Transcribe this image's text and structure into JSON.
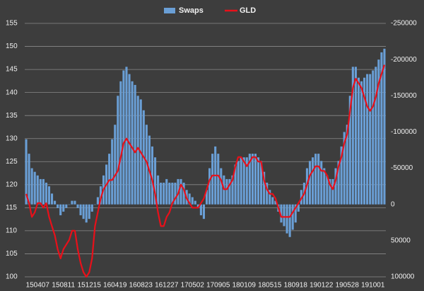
{
  "chart_data": {
    "type": "bar",
    "categories": [
      null,
      null,
      null,
      null,
      "150407",
      null,
      null,
      null,
      null,
      null,
      null,
      null,
      null,
      "150811",
      null,
      null,
      null,
      null,
      null,
      null,
      null,
      null,
      "151215",
      null,
      null,
      null,
      null,
      null,
      null,
      null,
      null,
      "160419",
      null,
      null,
      null,
      null,
      null,
      null,
      null,
      null,
      "160823",
      null,
      null,
      null,
      null,
      null,
      null,
      null,
      null,
      "161227",
      null,
      null,
      null,
      null,
      null,
      null,
      null,
      null,
      "170502",
      null,
      null,
      null,
      null,
      null,
      null,
      null,
      null,
      "170905",
      null,
      null,
      null,
      null,
      null,
      null,
      null,
      null,
      "180109",
      null,
      null,
      null,
      null,
      null,
      null,
      null,
      null,
      "180515",
      null,
      null,
      null,
      null,
      null,
      null,
      null,
      null,
      "180918",
      null,
      null,
      null,
      null,
      null,
      null,
      null,
      null,
      "190122",
      null,
      null,
      null,
      null,
      null,
      null,
      null,
      null,
      "190528",
      null,
      null,
      null,
      null,
      null,
      null,
      null,
      null,
      "191001",
      null,
      null,
      null,
      null
    ],
    "series": [
      {
        "name": "Swaps",
        "type": "bar",
        "axis": "y2",
        "color": "#6a9fd6",
        "values": [
          -90000,
          -70000,
          -50000,
          -45000,
          -40000,
          -35000,
          -35000,
          -30000,
          -25000,
          -15000,
          -5000,
          5000,
          15000,
          10000,
          5000,
          0,
          -5000,
          -5000,
          5000,
          15000,
          20000,
          25000,
          20000,
          10000,
          0,
          -10000,
          -25000,
          -40000,
          -55000,
          -70000,
          -90000,
          -110000,
          -150000,
          -170000,
          -185000,
          -190000,
          -180000,
          -170000,
          -165000,
          -150000,
          -145000,
          -130000,
          -110000,
          -95000,
          -80000,
          -65000,
          -40000,
          -30000,
          -30000,
          -35000,
          -30000,
          -30000,
          -30000,
          -35000,
          -35000,
          -30000,
          -20000,
          -15000,
          -10000,
          -5000,
          5000,
          15000,
          20000,
          -20000,
          -50000,
          -70000,
          -80000,
          -70000,
          -50000,
          -40000,
          -35000,
          -35000,
          -40000,
          -55000,
          -60000,
          -65000,
          -65000,
          -65000,
          -70000,
          -70000,
          -70000,
          -65000,
          -60000,
          -45000,
          -30000,
          -20000,
          -10000,
          -5000,
          10000,
          25000,
          30000,
          40000,
          45000,
          35000,
          25000,
          10000,
          -20000,
          -30000,
          -50000,
          -60000,
          -65000,
          -70000,
          -70000,
          -60000,
          -50000,
          -40000,
          -35000,
          -35000,
          -50000,
          -60000,
          -80000,
          -100000,
          -110000,
          -150000,
          -190000,
          -190000,
          -175000,
          -170000,
          -175000,
          -180000,
          -180000,
          -185000,
          -190000,
          -200000,
          -210000,
          -215000
        ]
      },
      {
        "name": "GLD",
        "type": "line",
        "color": "#e8101a",
        "values": [
          118,
          116,
          113,
          114,
          116,
          116,
          115,
          116,
          113,
          111,
          109,
          106,
          104,
          106,
          107,
          108,
          110,
          110,
          106,
          103,
          101,
          100,
          101,
          104,
          111,
          114,
          117,
          119,
          120,
          121,
          121,
          122,
          123,
          126,
          129,
          130,
          129,
          128,
          127,
          128,
          127,
          126,
          125,
          123,
          121,
          118,
          114,
          111,
          111,
          113,
          114,
          116,
          117,
          118,
          120,
          119,
          117,
          116,
          115,
          115,
          115,
          116,
          117,
          119,
          121,
          122,
          122,
          122,
          121,
          119,
          119,
          120,
          121,
          124,
          126,
          126,
          125,
          124,
          125,
          126,
          126,
          125,
          125,
          121,
          119,
          118,
          118,
          117,
          115,
          113,
          113,
          113,
          113,
          114,
          115,
          116,
          117,
          118,
          120,
          122,
          123,
          124,
          124,
          123,
          123,
          122,
          120,
          119,
          121,
          124,
          126,
          129,
          131,
          136,
          141,
          143,
          142,
          141,
          139,
          137,
          136,
          137,
          139,
          142,
          144,
          146
        ]
      }
    ],
    "ylim": [
      100,
      155
    ],
    "yticks": [
      100,
      105,
      110,
      115,
      120,
      125,
      130,
      135,
      140,
      145,
      150,
      155
    ],
    "y2lim": [
      -250000,
      100000
    ],
    "y2_reversed": true,
    "y2ticks": [
      -250000,
      -200000,
      -150000,
      -100000,
      -50000,
      0,
      50000,
      100000
    ],
    "grid": true
  }
}
